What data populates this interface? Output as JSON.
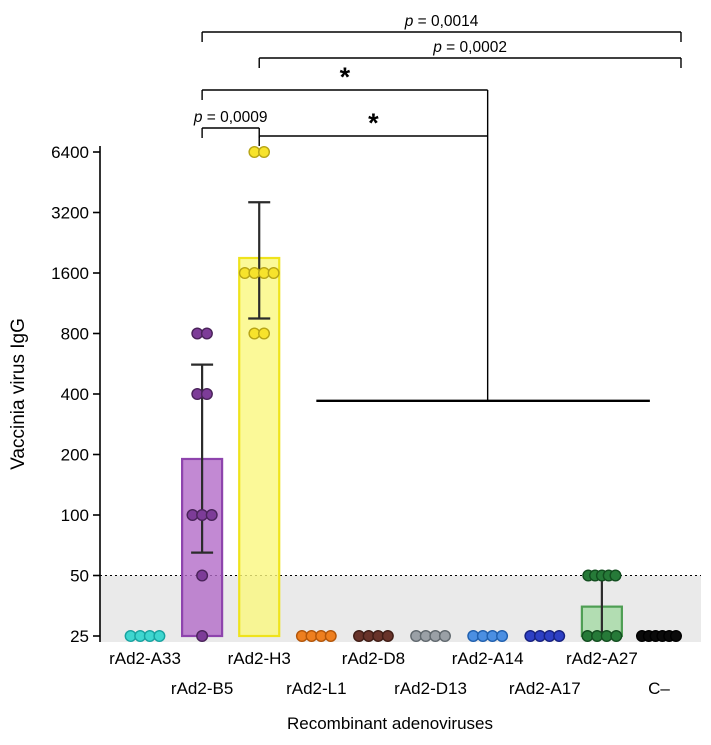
{
  "figure": {
    "ylabel": "Vaccinia virus IgG",
    "xlabel": "Recombinant adenoviruses"
  },
  "chart_data": {
    "type": "scatter",
    "y_scale": "log2",
    "ylim": [
      25,
      6400
    ],
    "yticks": [
      25,
      50,
      100,
      200,
      400,
      800,
      1600,
      3200,
      6400
    ],
    "detection_limit_line": 50,
    "shaded_band": {
      "from": 25,
      "to": 50,
      "color": "#eaeaea"
    },
    "categories": [
      "rAd2-A33",
      "rAd2-B5",
      "rAd2-H3",
      "rAd2-L1",
      "rAd2-D8",
      "rAd2-D13",
      "rAd2-A14",
      "rAd2-A17",
      "rAd2-A27",
      "C–"
    ],
    "groups": [
      {
        "label": "rAd2-A33",
        "dot_fill": "#3ED6CF",
        "dot_stroke": "#17A2A0",
        "points": [
          25,
          25,
          25,
          25
        ]
      },
      {
        "label": "rAd2-B5",
        "dot_fill": "#7D3C98",
        "dot_stroke": "#4A235A",
        "points": [
          800,
          800,
          400,
          400,
          100,
          100,
          100,
          50,
          25
        ],
        "bar": {
          "value": 190,
          "err_low": 65,
          "err_high": 560,
          "fill": "#B36CC8",
          "stroke": "#8E44AD"
        }
      },
      {
        "label": "rAd2-H3",
        "dot_fill": "#F7E32C",
        "dot_stroke": "#B7A416",
        "points": [
          6400,
          6400,
          1600,
          1600,
          1600,
          1600,
          800,
          800
        ],
        "bar": {
          "value": 1900,
          "err_low": 950,
          "err_high": 3600,
          "fill": "#FAF87E",
          "stroke": "#EFE31C"
        }
      },
      {
        "label": "rAd2-L1",
        "dot_fill": "#EE7F1F",
        "dot_stroke": "#B35508",
        "points": [
          25,
          25,
          25,
          25
        ]
      },
      {
        "label": "rAd2-D8",
        "dot_fill": "#68332A",
        "dot_stroke": "#3F1C15",
        "points": [
          25,
          25,
          25,
          25
        ]
      },
      {
        "label": "rAd2-D13",
        "dot_fill": "#9AA0A6",
        "dot_stroke": "#5F676D",
        "points": [
          25,
          25,
          25,
          25
        ]
      },
      {
        "label": "rAd2-A14",
        "dot_fill": "#4B8FE2",
        "dot_stroke": "#1F5FAE",
        "points": [
          25,
          25,
          25,
          25
        ]
      },
      {
        "label": "rAd2-A17",
        "dot_fill": "#2D3FC4",
        "dot_stroke": "#16207F",
        "points": [
          25,
          25,
          25,
          25
        ]
      },
      {
        "label": "rAd2-A27",
        "dot_fill": "#267A38",
        "dot_stroke": "#124D1F",
        "points": [
          50,
          50,
          50,
          50,
          50,
          25,
          25,
          25,
          25
        ],
        "bar": {
          "value": 35,
          "err_low": 25,
          "err_high": 50,
          "fill": "#A4D9A4",
          "stroke": "#4E9E53"
        }
      },
      {
        "label": "C–",
        "dot_fill": "#0A0A0A",
        "dot_stroke": "#000000",
        "points": [
          25,
          25,
          25,
          25,
          25,
          25
        ]
      }
    ],
    "group_comparison_line": {
      "from": "rAd2-L1",
      "to": "rAd2-A27",
      "to_dx": 48,
      "y_value": 370,
      "connector_at": "rAd2-A14"
    },
    "comparisons": [
      {
        "label": "p = 0,0014",
        "from": "rAd2-B5",
        "to": "C–",
        "to_dx": 22,
        "row_y": 32
      },
      {
        "label": "p = 0,0002",
        "from": "rAd2-H3",
        "to": "C–",
        "to_dx": 22,
        "row_y": 58
      },
      {
        "label": "*",
        "from": "rAd2-B5",
        "to": "@connector",
        "row_y": 90
      },
      {
        "label": "p = 0,0009",
        "from": "rAd2-B5",
        "to": "rAd2-H3",
        "row_y": 128
      },
      {
        "label": "*",
        "from": "rAd2-H3",
        "to": "@connector",
        "row_y": 136
      }
    ]
  }
}
